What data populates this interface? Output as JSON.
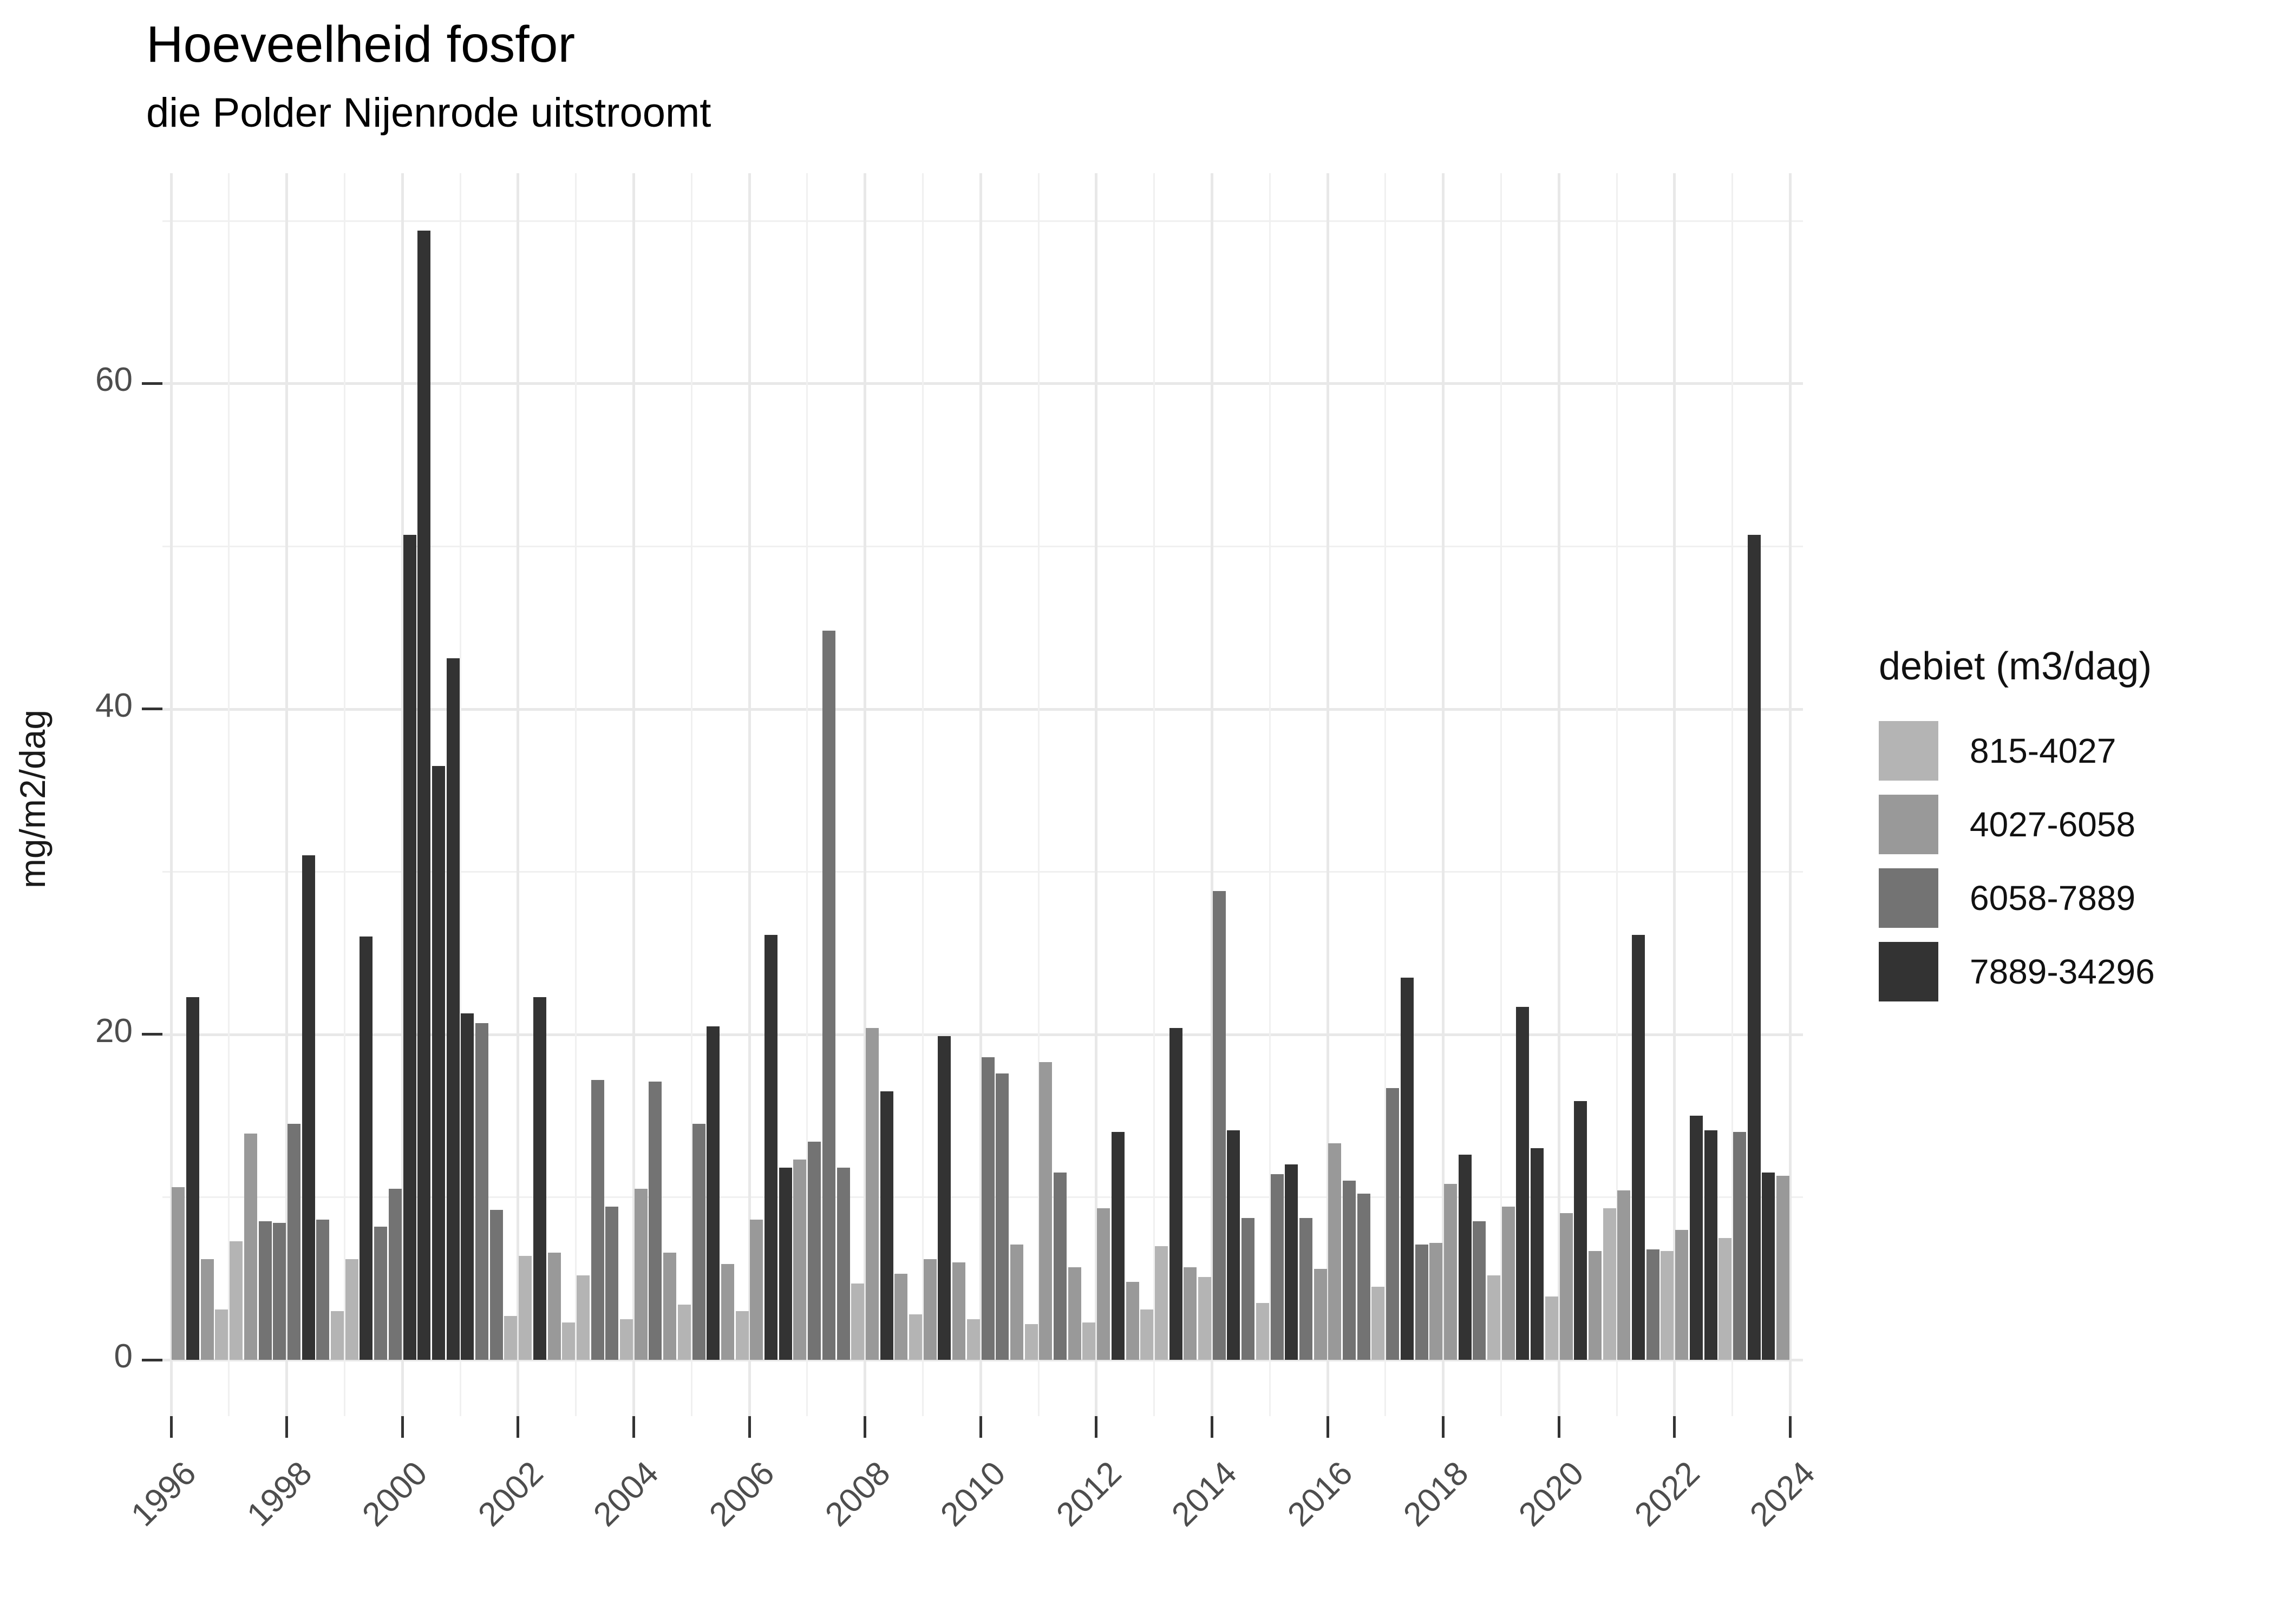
{
  "title": "Hoeveelheid fosfor",
  "subtitle": "die Polder Nijenrode uitstroomt",
  "y_axis": {
    "label": "mg/m2/dag",
    "major_ticks": [
      0,
      20,
      40,
      60
    ],
    "minor_gridlines": [
      10,
      30,
      50,
      70
    ]
  },
  "x_axis": {
    "major_ticks": [
      1996,
      1998,
      2000,
      2002,
      2004,
      2006,
      2008,
      2010,
      2012,
      2014,
      2016,
      2018,
      2020,
      2022,
      2024
    ]
  },
  "legend": {
    "title": "debiet (m3/dag)",
    "entries": [
      {
        "label": "815-4027",
        "color": "#b4b4b4"
      },
      {
        "label": "4027-6058",
        "color": "#999999"
      },
      {
        "label": "6058-7889",
        "color": "#737373"
      },
      {
        "label": "7889-34296",
        "color": "#333333"
      }
    ]
  },
  "chart_data": {
    "type": "bar",
    "title": "Hoeveelheid fosfor",
    "subtitle": "die Polder Nijenrode uitstroomt",
    "xlabel": "",
    "ylabel": "mg/m2/dag",
    "ylim": [
      0,
      73
    ],
    "xlim": [
      1995.85,
      2024.2
    ],
    "grid": true,
    "legend_position": "right",
    "legend_title": "debiet (m3/dag)",
    "x_unit": "quarterly bars (year + quarter), grouped by debiet class",
    "columns": [
      "year",
      "quarter",
      "value_mg_m2_dag",
      "debiet_class"
    ],
    "points": [
      [
        1996,
        1,
        10.6,
        "4027-6058"
      ],
      [
        1996,
        2,
        22.3,
        "7889-34296"
      ],
      [
        1996,
        3,
        6.2,
        "4027-6058"
      ],
      [
        1996,
        4,
        3.1,
        "815-4027"
      ],
      [
        1997,
        1,
        7.3,
        "815-4027"
      ],
      [
        1997,
        2,
        13.9,
        "4027-6058"
      ],
      [
        1997,
        3,
        8.5,
        "6058-7889"
      ],
      [
        1997,
        4,
        8.4,
        "6058-7889"
      ],
      [
        1998,
        1,
        14.5,
        "6058-7889"
      ],
      [
        1998,
        2,
        31.0,
        "7889-34296"
      ],
      [
        1998,
        3,
        8.6,
        "6058-7889"
      ],
      [
        1998,
        4,
        3.0,
        "815-4027"
      ],
      [
        1999,
        1,
        6.2,
        "815-4027"
      ],
      [
        1999,
        2,
        26.0,
        "7889-34296"
      ],
      [
        1999,
        3,
        8.2,
        "6058-7889"
      ],
      [
        1999,
        4,
        10.5,
        "6058-7889"
      ],
      [
        2000,
        1,
        50.7,
        "7889-34296"
      ],
      [
        2000,
        2,
        69.4,
        "7889-34296"
      ],
      [
        2000,
        3,
        36.5,
        "7889-34296"
      ],
      [
        2000,
        4,
        43.1,
        "7889-34296"
      ],
      [
        2001,
        1,
        21.3,
        "7889-34296"
      ],
      [
        2001,
        2,
        20.7,
        "6058-7889"
      ],
      [
        2001,
        3,
        9.2,
        "6058-7889"
      ],
      [
        2001,
        4,
        2.7,
        "815-4027"
      ],
      [
        2002,
        1,
        6.4,
        "815-4027"
      ],
      [
        2002,
        2,
        22.3,
        "7889-34296"
      ],
      [
        2002,
        3,
        6.6,
        "4027-6058"
      ],
      [
        2002,
        4,
        2.3,
        "815-4027"
      ],
      [
        2003,
        1,
        5.2,
        "815-4027"
      ],
      [
        2003,
        2,
        17.2,
        "6058-7889"
      ],
      [
        2003,
        3,
        9.4,
        "6058-7889"
      ],
      [
        2003,
        4,
        2.5,
        "815-4027"
      ],
      [
        2004,
        1,
        10.5,
        "4027-6058"
      ],
      [
        2004,
        2,
        17.1,
        "6058-7889"
      ],
      [
        2004,
        3,
        6.6,
        "4027-6058"
      ],
      [
        2004,
        4,
        3.4,
        "815-4027"
      ],
      [
        2005,
        1,
        14.5,
        "6058-7889"
      ],
      [
        2005,
        2,
        20.5,
        "7889-34296"
      ],
      [
        2005,
        3,
        5.9,
        "4027-6058"
      ],
      [
        2005,
        4,
        3.0,
        "815-4027"
      ],
      [
        2006,
        1,
        8.6,
        "4027-6058"
      ],
      [
        2006,
        2,
        26.1,
        "7889-34296"
      ],
      [
        2006,
        3,
        11.8,
        "7889-34296"
      ],
      [
        2006,
        4,
        12.3,
        "4027-6058"
      ],
      [
        2007,
        1,
        13.4,
        "6058-7889"
      ],
      [
        2007,
        2,
        44.8,
        "6058-7889"
      ],
      [
        2007,
        3,
        11.8,
        "6058-7889"
      ],
      [
        2007,
        4,
        4.7,
        "815-4027"
      ],
      [
        2008,
        1,
        20.4,
        "4027-6058"
      ],
      [
        2008,
        2,
        16.5,
        "7889-34296"
      ],
      [
        2008,
        3,
        5.3,
        "4027-6058"
      ],
      [
        2008,
        4,
        2.8,
        "815-4027"
      ],
      [
        2009,
        1,
        6.2,
        "4027-6058"
      ],
      [
        2009,
        2,
        19.9,
        "7889-34296"
      ],
      [
        2009,
        3,
        6.0,
        "4027-6058"
      ],
      [
        2009,
        4,
        2.5,
        "815-4027"
      ],
      [
        2010,
        1,
        18.6,
        "6058-7889"
      ],
      [
        2010,
        2,
        17.6,
        "6058-7889"
      ],
      [
        2010,
        3,
        7.1,
        "4027-6058"
      ],
      [
        2010,
        4,
        2.2,
        "815-4027"
      ],
      [
        2011,
        1,
        18.3,
        "4027-6058"
      ],
      [
        2011,
        2,
        11.5,
        "6058-7889"
      ],
      [
        2011,
        3,
        5.7,
        "4027-6058"
      ],
      [
        2011,
        4,
        2.3,
        "815-4027"
      ],
      [
        2012,
        1,
        9.3,
        "4027-6058"
      ],
      [
        2012,
        2,
        14.0,
        "7889-34296"
      ],
      [
        2012,
        3,
        4.8,
        "4027-6058"
      ],
      [
        2012,
        4,
        3.1,
        "815-4027"
      ],
      [
        2013,
        1,
        7.0,
        "815-4027"
      ],
      [
        2013,
        2,
        20.4,
        "7889-34296"
      ],
      [
        2013,
        3,
        5.7,
        "4027-6058"
      ],
      [
        2013,
        4,
        5.1,
        "815-4027"
      ],
      [
        2014,
        1,
        28.8,
        "6058-7889"
      ],
      [
        2014,
        2,
        14.1,
        "7889-34296"
      ],
      [
        2014,
        3,
        8.7,
        "6058-7889"
      ],
      [
        2014,
        4,
        3.5,
        "815-4027"
      ],
      [
        2015,
        1,
        11.4,
        "6058-7889"
      ],
      [
        2015,
        2,
        12.0,
        "7889-34296"
      ],
      [
        2015,
        3,
        8.7,
        "6058-7889"
      ],
      [
        2015,
        4,
        5.6,
        "4027-6058"
      ],
      [
        2016,
        1,
        13.3,
        "4027-6058"
      ],
      [
        2016,
        2,
        11.0,
        "6058-7889"
      ],
      [
        2016,
        3,
        10.2,
        "6058-7889"
      ],
      [
        2016,
        4,
        4.5,
        "815-4027"
      ],
      [
        2017,
        1,
        16.7,
        "6058-7889"
      ],
      [
        2017,
        2,
        23.5,
        "7889-34296"
      ],
      [
        2017,
        3,
        7.1,
        "6058-7889"
      ],
      [
        2017,
        4,
        7.2,
        "4027-6058"
      ],
      [
        2018,
        1,
        10.8,
        "4027-6058"
      ],
      [
        2018,
        2,
        12.6,
        "7889-34296"
      ],
      [
        2018,
        3,
        8.5,
        "6058-7889"
      ],
      [
        2018,
        4,
        5.2,
        "815-4027"
      ],
      [
        2019,
        1,
        9.4,
        "4027-6058"
      ],
      [
        2019,
        2,
        21.7,
        "7889-34296"
      ],
      [
        2019,
        3,
        13.0,
        "7889-34296"
      ],
      [
        2019,
        4,
        3.9,
        "815-4027"
      ],
      [
        2020,
        1,
        9.0,
        "4027-6058"
      ],
      [
        2020,
        2,
        15.9,
        "7889-34296"
      ],
      [
        2020,
        3,
        6.7,
        "4027-6058"
      ],
      [
        2020,
        4,
        9.3,
        "815-4027"
      ],
      [
        2021,
        1,
        10.4,
        "4027-6058"
      ],
      [
        2021,
        2,
        26.1,
        "7889-34296"
      ],
      [
        2021,
        3,
        6.8,
        "6058-7889"
      ],
      [
        2021,
        4,
        6.7,
        "815-4027"
      ],
      [
        2022,
        1,
        8.0,
        "4027-6058"
      ],
      [
        2022,
        2,
        15.0,
        "7889-34296"
      ],
      [
        2022,
        3,
        14.1,
        "7889-34296"
      ],
      [
        2022,
        4,
        7.5,
        "815-4027"
      ],
      [
        2023,
        1,
        14.0,
        "6058-7889"
      ],
      [
        2023,
        2,
        50.7,
        "7889-34296"
      ],
      [
        2023,
        3,
        11.5,
        "7889-34296"
      ],
      [
        2023,
        4,
        11.3,
        "4027-6058"
      ]
    ],
    "class_colors": {
      "815-4027": "#b4b4b4",
      "4027-6058": "#999999",
      "6058-7889": "#737373",
      "7889-34296": "#333333"
    }
  }
}
